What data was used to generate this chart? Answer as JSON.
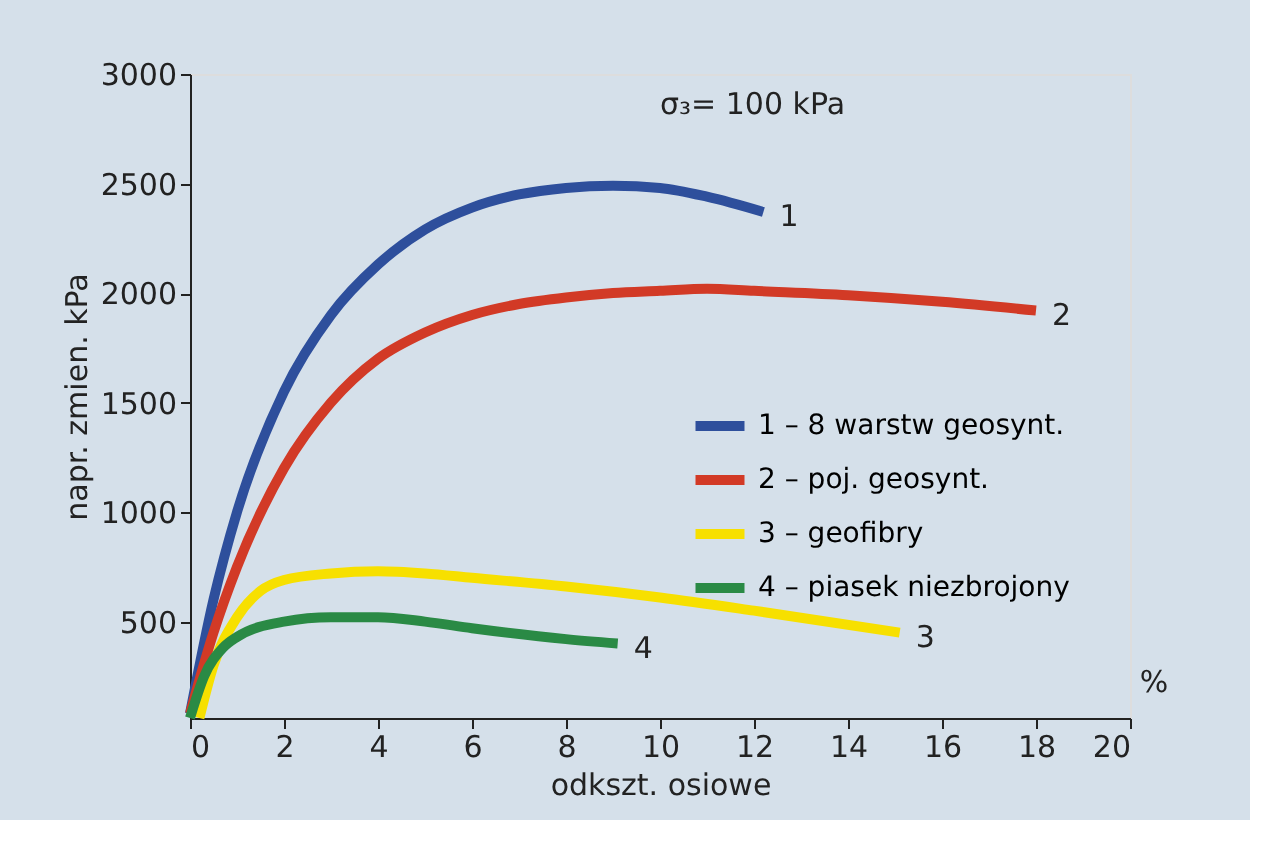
{
  "chart_data": {
    "type": "line",
    "xlabel": "odkszt. osiowe",
    "ylabel": "napr. zmien.  kPa",
    "xlim": [
      0,
      20
    ],
    "xticks": [
      0,
      2,
      4,
      6,
      8,
      10,
      12,
      14,
      16,
      18,
      20
    ],
    "ylim": [
      60,
      3000
    ],
    "yticks": [
      500,
      1000,
      1500,
      2000,
      2500,
      3000
    ],
    "grid": false,
    "legend": "right",
    "marker": "none",
    "line_style": "solid",
    "annotations": [
      "σ₃= 100 kPa",
      "%",
      {
        "text": "1",
        "x": 12.2,
        "y": 2370
      },
      {
        "text": "2",
        "x": 18,
        "y": 1920
      },
      {
        "text": "3",
        "x": 15.1,
        "y": 450
      },
      {
        "text": "4",
        "x": 9.1,
        "y": 400
      }
    ],
    "series": [
      {
        "name": "1 – 8 warstw geosynt.",
        "color": "#2e4f9c",
        "x": [
          0,
          0.5,
          1,
          2,
          3,
          4,
          5,
          6,
          7,
          8,
          9,
          10,
          11,
          12.2
        ],
        "values": [
          80,
          600,
          1000,
          1550,
          1900,
          2130,
          2290,
          2390,
          2450,
          2480,
          2490,
          2480,
          2440,
          2370
        ]
      },
      {
        "name": "2 – poj. geosynt.",
        "color": "#d23a26",
        "x": [
          0,
          0.5,
          1,
          2,
          3,
          4,
          5,
          6,
          7,
          8,
          9,
          10,
          11,
          12,
          14,
          16,
          18
        ],
        "values": [
          80,
          450,
          750,
          1200,
          1500,
          1700,
          1820,
          1900,
          1950,
          1980,
          2000,
          2010,
          2020,
          2010,
          1990,
          1960,
          1920
        ]
      },
      {
        "name": "3 – geofibry",
        "color": "#f7e000",
        "x": [
          0.2,
          0.5,
          1,
          1.5,
          2,
          3,
          4,
          5,
          6,
          8,
          10,
          12,
          15.1
        ],
        "values": [
          60,
          300,
          520,
          640,
          690,
          720,
          730,
          720,
          700,
          660,
          610,
          550,
          450
        ]
      },
      {
        "name": "4 – piasek niezbrojony",
        "color": "#2a8a45",
        "x": [
          0,
          0.3,
          0.7,
          1,
          2,
          3,
          4,
          5,
          6,
          8,
          9.1
        ],
        "values": [
          60,
          250,
          380,
          430,
          500,
          520,
          520,
          500,
          470,
          420,
          400
        ]
      }
    ]
  }
}
